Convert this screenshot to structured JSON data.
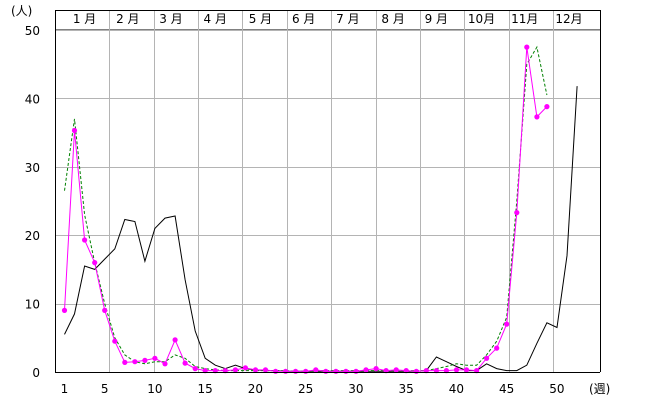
{
  "chart_data": {
    "type": "line",
    "title": "",
    "xlabel": "(週)",
    "ylabel": "(人)",
    "xlim": [
      1,
      53
    ],
    "ylim": [
      0,
      50
    ],
    "grid": true,
    "xticks": [
      1,
      5,
      10,
      15,
      20,
      25,
      30,
      35,
      40,
      45,
      50
    ],
    "yticks": [
      0,
      10,
      20,
      30,
      40,
      50
    ],
    "months": [
      {
        "label": "1 月",
        "pos": 3
      },
      {
        "label": "2 月",
        "pos": 7.3
      },
      {
        "label": "3 月",
        "pos": 11.6
      },
      {
        "label": "4 月",
        "pos": 16
      },
      {
        "label": "5 月",
        "pos": 20.5
      },
      {
        "label": "6 月",
        "pos": 24.8
      },
      {
        "label": "7 月",
        "pos": 29.2
      },
      {
        "label": "8 月",
        "pos": 33.7
      },
      {
        "label": "9 月",
        "pos": 38
      },
      {
        "label": "10月",
        "pos": 42.5
      },
      {
        "label": "11月",
        "pos": 46.8
      },
      {
        "label": "12月",
        "pos": 51.2
      }
    ],
    "month_dividers": [
      5.4,
      9.9,
      14.3,
      18.7,
      23.1,
      27.5,
      32.0,
      36.4,
      40.8,
      45.2,
      49.6
    ],
    "series": [
      {
        "color": "#000000",
        "style": "solid",
        "markers": false,
        "values": [
          5.5,
          8.5,
          15.5,
          15,
          16.5,
          18,
          22.3,
          22,
          16.2,
          21,
          22.5,
          22.8,
          13.5,
          6,
          2,
          1,
          0.5,
          1,
          0.5,
          0.3,
          0.2,
          0.2,
          0.1,
          0.1,
          0.1,
          0.1,
          0.1,
          0.1,
          0.1,
          0.1,
          0.1,
          0.1,
          0.1,
          0.1,
          0.1,
          0.1,
          0.2,
          2.2,
          1.5,
          0.8,
          0.2,
          0.2,
          1.2,
          0.5,
          0.2,
          0.2,
          1,
          4.2,
          7.2,
          6.5,
          17,
          41.8
        ]
      },
      {
        "color": "#008000",
        "style": "dashed",
        "markers": false,
        "values": [
          26.5,
          37,
          23,
          16,
          10,
          5,
          2.5,
          1.5,
          1.2,
          1.5,
          1.5,
          2.5,
          2,
          0.8,
          0.5,
          0.3,
          0.2,
          0.2,
          0.2,
          0.2,
          0.2,
          0.2,
          0.2,
          0.1,
          0.1,
          0.2,
          0.2,
          0.2,
          0.2,
          0.2,
          0.2,
          0.2,
          0.2,
          0.2,
          0.2,
          0.2,
          0.2,
          0.5,
          0.8,
          1.2,
          1,
          1,
          2.5,
          4.5,
          8,
          25,
          45,
          47.5,
          40.5
        ]
      },
      {
        "color": "#ff00ff",
        "style": "solid",
        "markers": true,
        "values": [
          9,
          35.3,
          19.3,
          16,
          9,
          4.5,
          1.4,
          1.5,
          1.7,
          2,
          1.2,
          4.7,
          1.3,
          0.5,
          0.2,
          0.2,
          0.2,
          0.3,
          0.6,
          0.3,
          0.3,
          0.1,
          0.1,
          0.1,
          0.1,
          0.3,
          0.1,
          0.1,
          0.1,
          0.1,
          0.3,
          0.5,
          0.2,
          0.3,
          0.2,
          0.1,
          0.2,
          0.2,
          0.2,
          0.3,
          0.3,
          0.2,
          2,
          3.5,
          7,
          23.3,
          47.5,
          37.3,
          38.8
        ]
      }
    ]
  }
}
